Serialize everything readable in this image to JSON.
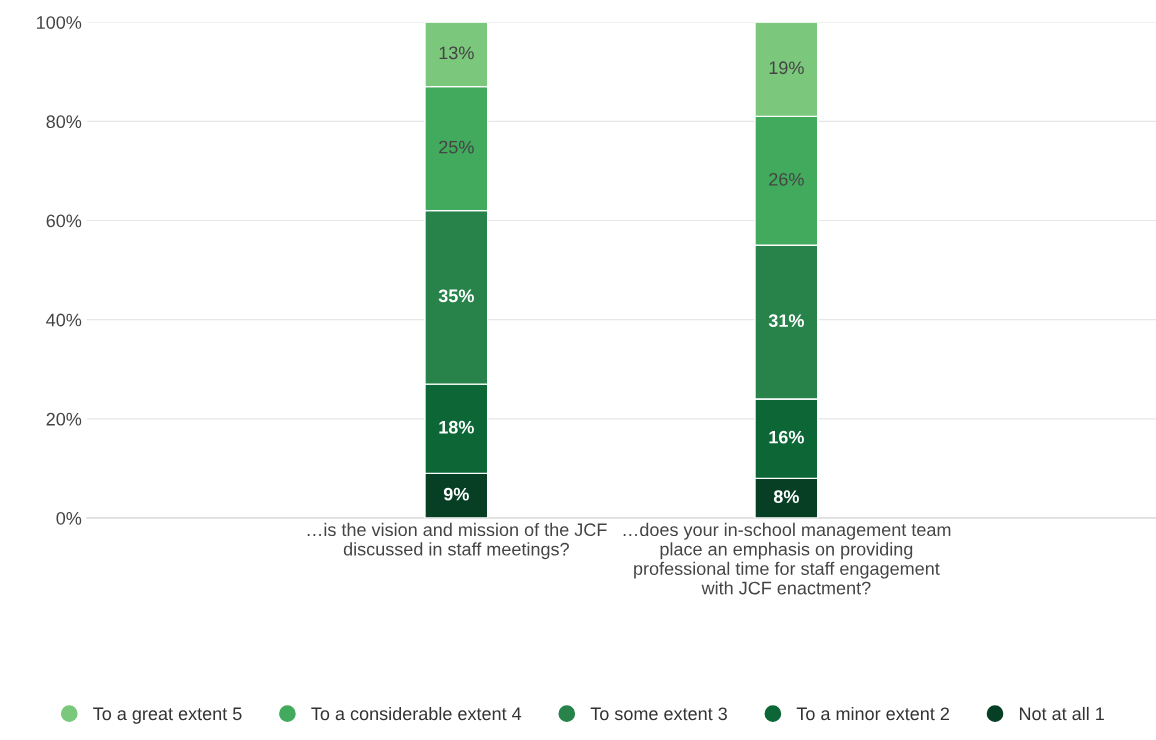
{
  "chart_data": {
    "type": "bar",
    "stacked": true,
    "categories": [
      "…is the vision and mission of the JCF discussed in staff meetings?",
      "…does your in-school management team place an emphasis on providing professional time for staff engagement with JCF enactment?"
    ],
    "series": [
      {
        "name": "Not at all 1",
        "color": "#073f25",
        "values": [
          9,
          8
        ],
        "value_labels": [
          "9%",
          "8%"
        ]
      },
      {
        "name": "To a minor extent 2",
        "color": "#0c6636",
        "values": [
          18,
          16
        ],
        "value_labels": [
          "18%",
          "16%"
        ]
      },
      {
        "name": "To some extent 3",
        "color": "#27834a",
        "values": [
          35,
          31
        ],
        "value_labels": [
          "35%",
          "31%"
        ]
      },
      {
        "name": "To a considerable extent 4",
        "color": "#42aa5c",
        "values": [
          25,
          26
        ],
        "value_labels": [
          "25%",
          "26%"
        ]
      },
      {
        "name": "To a great extent 5",
        "color": "#7bc87c",
        "values": [
          13,
          19
        ],
        "value_labels": [
          "13%",
          "19%"
        ]
      }
    ],
    "ylim": [
      0,
      100
    ],
    "yticks": [
      {
        "value": 0,
        "label": "0%"
      },
      {
        "value": 20,
        "label": "20%"
      },
      {
        "value": 40,
        "label": "40%"
      },
      {
        "value": 60,
        "label": "60%"
      },
      {
        "value": 80,
        "label": "80%"
      },
      {
        "value": 100,
        "label": "100%"
      }
    ],
    "grid": "y",
    "legend": "bottom"
  }
}
